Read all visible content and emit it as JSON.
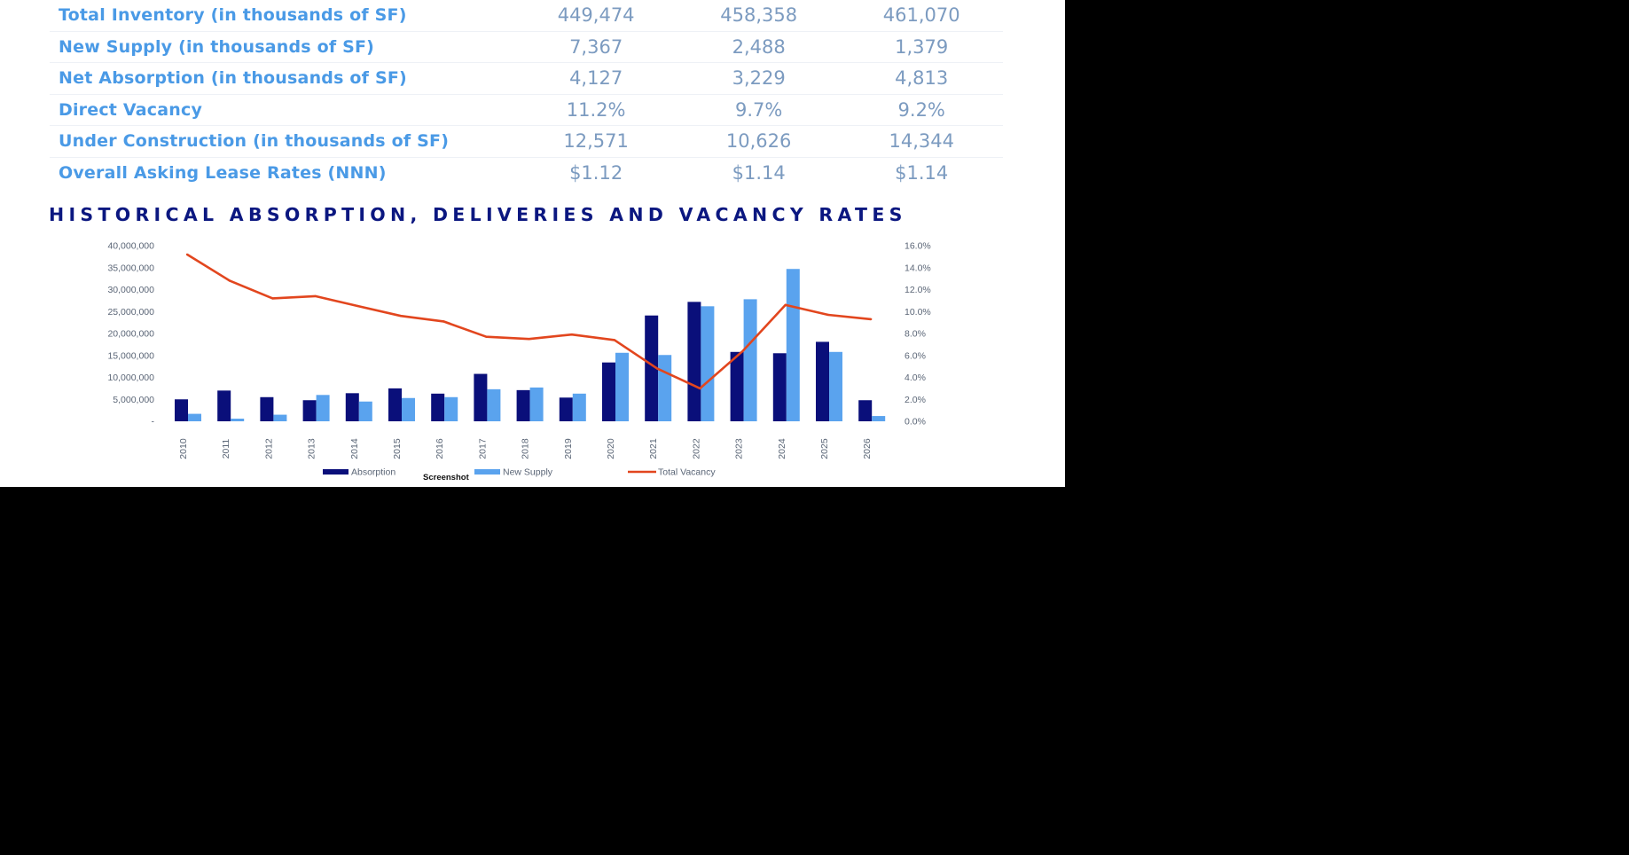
{
  "table": {
    "rows": [
      {
        "label": "Total Inventory (in thousands of SF)",
        "values": [
          "449,474",
          "458,358",
          "461,070"
        ]
      },
      {
        "label": "New Supply (in thousands of SF)",
        "values": [
          "7,367",
          "2,488",
          "1,379"
        ]
      },
      {
        "label": "Net Absorption (in thousands of SF)",
        "values": [
          "4,127",
          "3,229",
          "4,813"
        ]
      },
      {
        "label": "Direct Vacancy",
        "values": [
          "11.2%",
          "9.7%",
          "9.2%"
        ]
      },
      {
        "label": "Under Construction (in thousands of SF)",
        "values": [
          "12,571",
          "10,626",
          "14,344"
        ]
      },
      {
        "label": "Overall Asking Lease Rates (NNN)",
        "values": [
          "$1.12",
          "$1.14",
          "$1.14"
        ]
      }
    ]
  },
  "chart_data": {
    "type": "bar",
    "title": "HISTORICAL ABSORPTION, DELIVERIES AND VACANCY RATES",
    "categories": [
      "2010",
      "2011",
      "2012",
      "2013",
      "2014",
      "2015",
      "2016",
      "2017",
      "2018",
      "2019",
      "2020",
      "2021",
      "2022",
      "2023",
      "2024",
      "2025",
      "2026"
    ],
    "series": [
      {
        "name": "Absorption",
        "type": "bar",
        "axis": "left",
        "color": "#0a0f7a",
        "values": [
          5000000,
          7000000,
          5500000,
          4800000,
          6400000,
          7500000,
          6300000,
          10800000,
          7100000,
          5400000,
          13400000,
          24100000,
          27200000,
          15800000,
          15500000,
          18100000,
          4800000
        ]
      },
      {
        "name": "New Supply",
        "type": "bar",
        "axis": "left",
        "color": "#5aa3ee",
        "values": [
          1700000,
          600000,
          1500000,
          6000000,
          4500000,
          5300000,
          5500000,
          7300000,
          7700000,
          6300000,
          15600000,
          15100000,
          26200000,
          27800000,
          34700000,
          15800000,
          1200000
        ]
      },
      {
        "name": "Total Vacancy",
        "type": "line",
        "axis": "right",
        "color": "#e2461e",
        "values": [
          15.2,
          12.8,
          11.2,
          11.4,
          10.5,
          9.6,
          9.1,
          7.7,
          7.5,
          7.9,
          7.4,
          4.8,
          3.0,
          6.4,
          10.6,
          9.7,
          9.3
        ]
      }
    ],
    "left_ticks": [
      "40,000,000",
      "35,000,000",
      "30,000,000",
      "25,000,000",
      "20,000,000",
      "15,000,000",
      "10,000,000",
      "5,000,000",
      "-"
    ],
    "right_ticks": [
      "16.0%",
      "14.0%",
      "12.0%",
      "10.0%",
      "8.0%",
      "6.0%",
      "4.0%",
      "2.0%",
      "0.0%"
    ],
    "ylim_left": [
      0,
      40000000
    ],
    "ylim_right": [
      0,
      16
    ],
    "legend_position": "bottom",
    "annotation": "Screenshot"
  }
}
